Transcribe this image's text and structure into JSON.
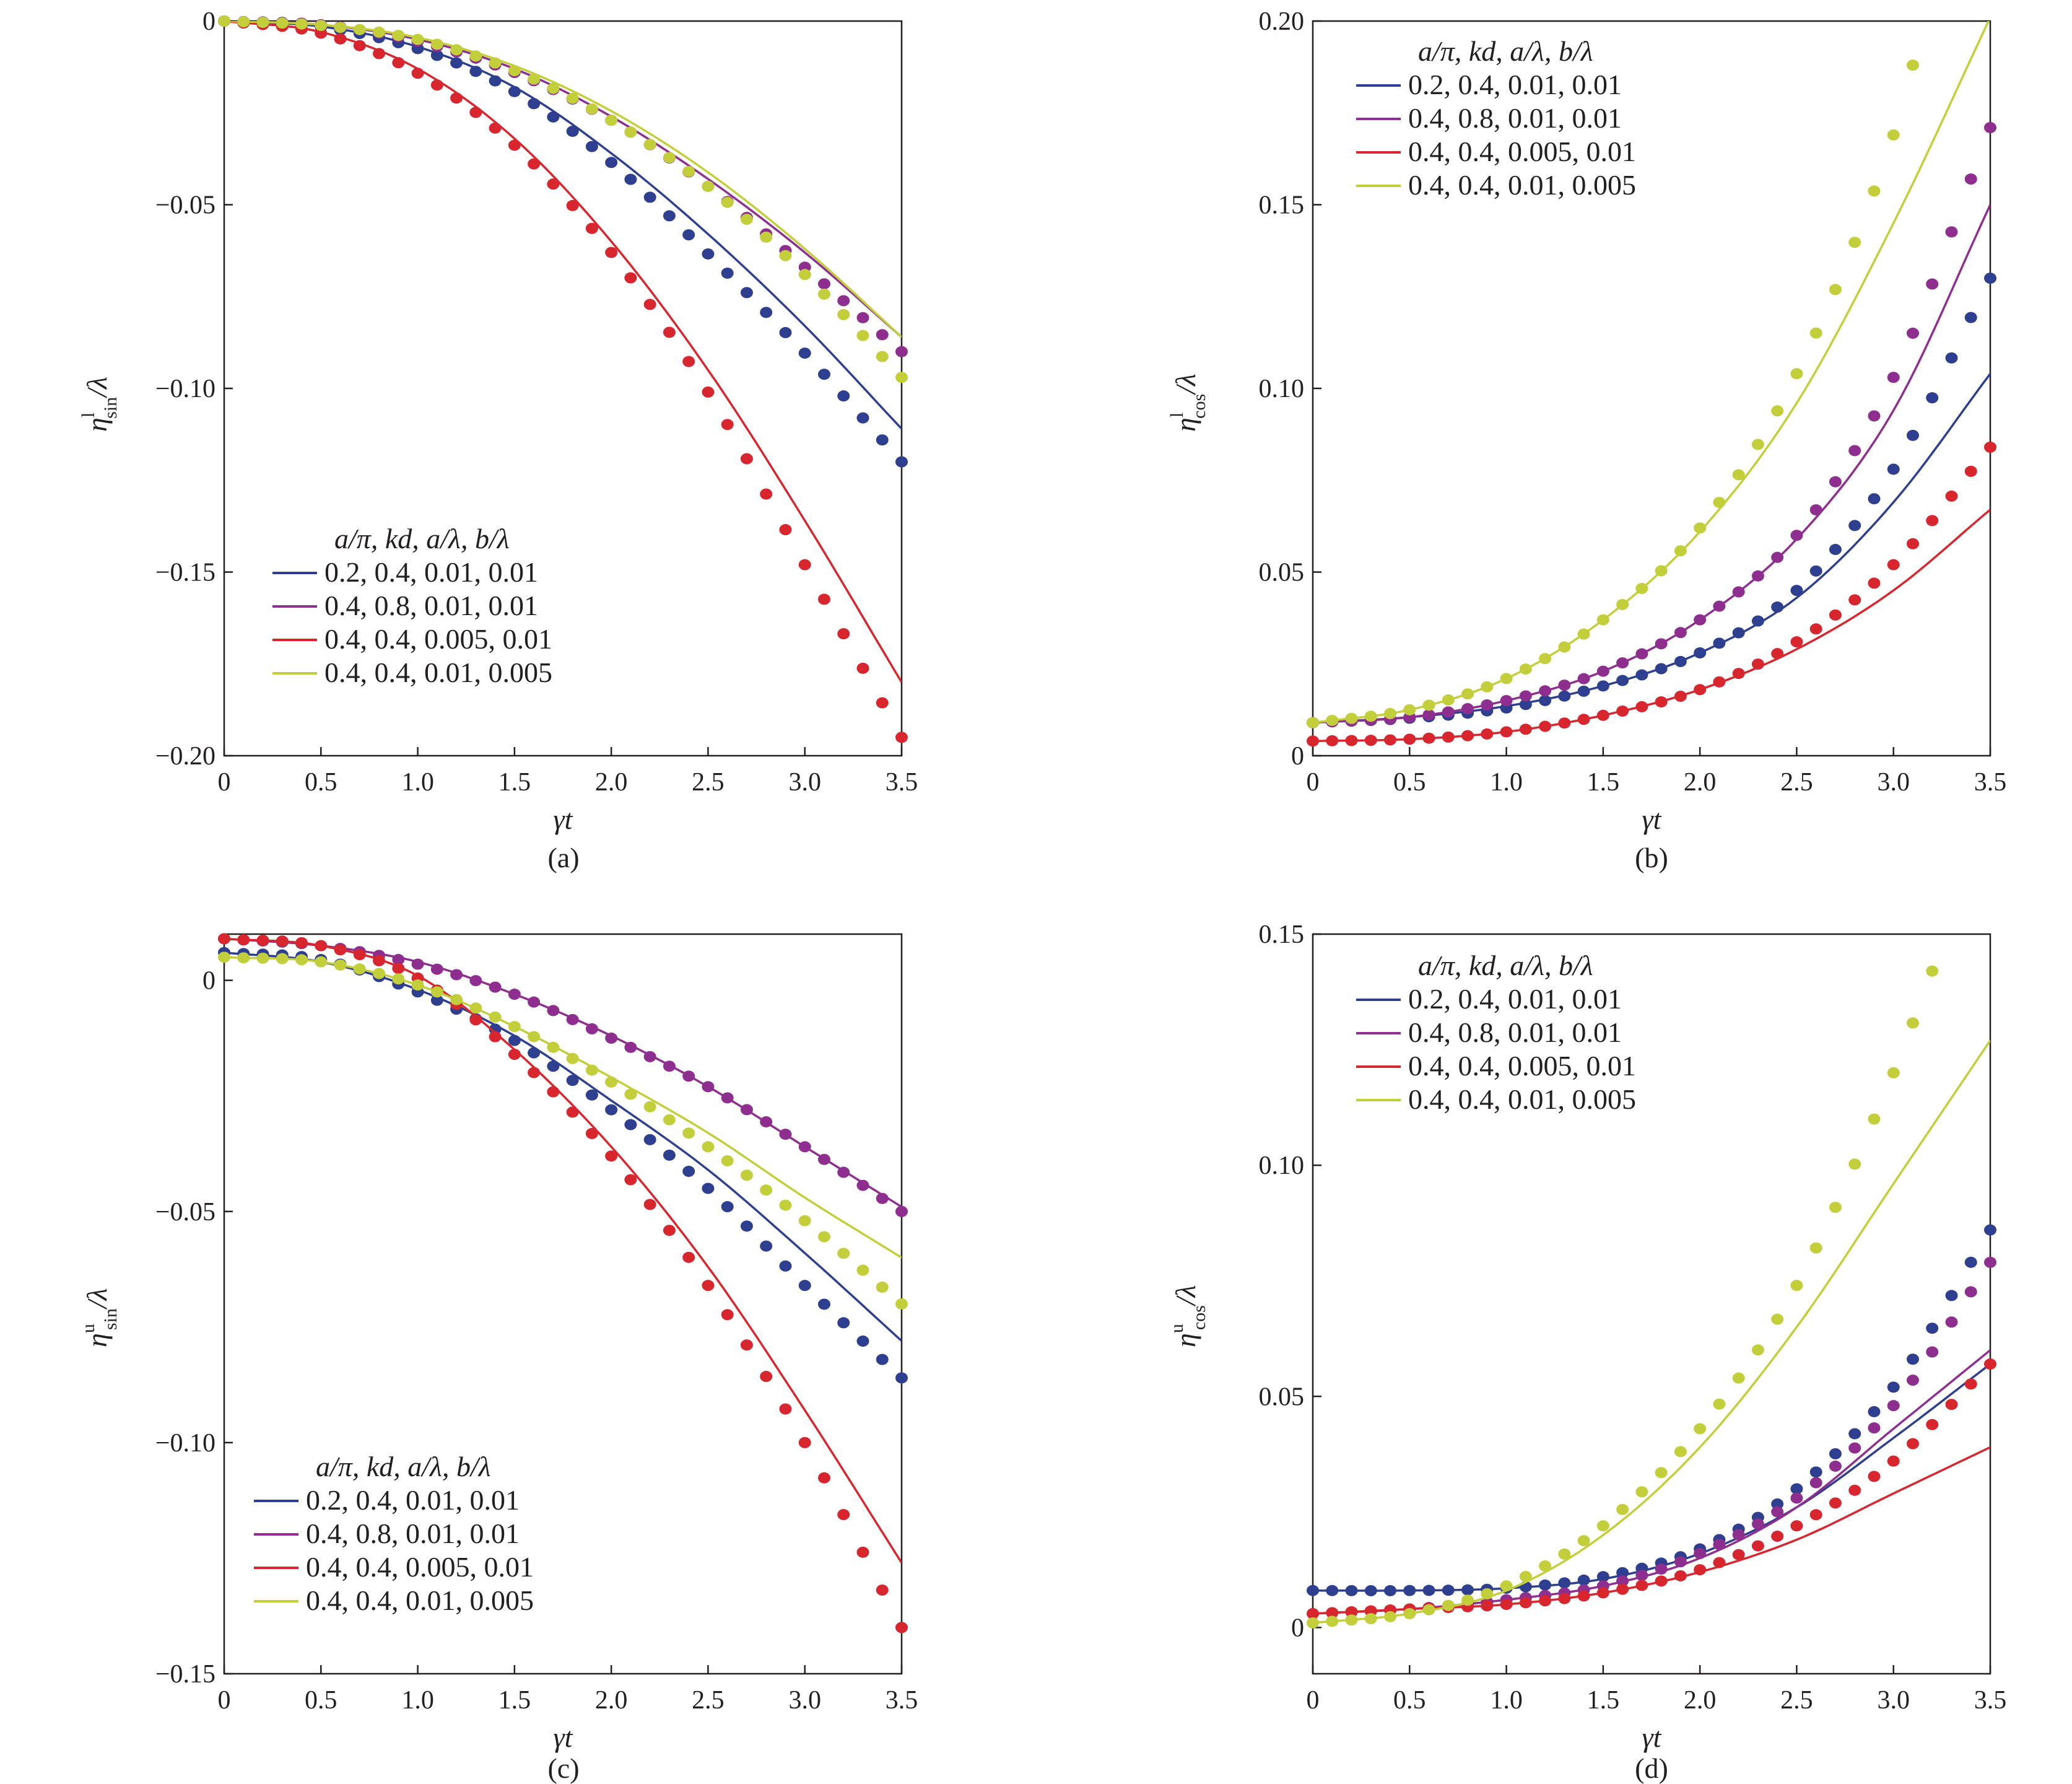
{
  "legend": {
    "title": "a/π,  kd,  a/λ,  b/λ",
    "entries": [
      {
        "label": "0.2, 0.4, 0.01, 0.01",
        "color": "#2e3f8f"
      },
      {
        "label": "0.4, 0.8, 0.01, 0.01",
        "color": "#8e2e8f"
      },
      {
        "label": "0.4, 0.4, 0.005, 0.01",
        "color": "#d7262e"
      },
      {
        "label": "0.4, 0.4, 0.01, 0.005",
        "color": "#c3cf3a"
      }
    ]
  },
  "chart_data": [
    {
      "type": "line",
      "panel_label": "(a)",
      "xlabel": "γt",
      "ylabel": {
        "main": "η",
        "sup": "l",
        "sub": "sin",
        "tail": "/λ"
      },
      "xlim": [
        0,
        3.5
      ],
      "ylim": [
        -0.2,
        0
      ],
      "xticks": [
        "0",
        "0.5",
        "1.0",
        "1.5",
        "2.0",
        "2.5",
        "3.0",
        "3.5"
      ],
      "yticks": [
        {
          "v": 0,
          "t": "0"
        },
        {
          "v": -0.05,
          "t": "−0.05"
        },
        {
          "v": -0.1,
          "t": "−0.10"
        },
        {
          "v": -0.15,
          "t": "−0.15"
        },
        {
          "v": -0.2,
          "t": "−0.20"
        }
      ],
      "legend_position": "bottom-left",
      "series": [
        {
          "lines": {
            "x": [
              0,
              0.5,
              1.0,
              1.5,
              2.0,
              2.5,
              3.0,
              3.5
            ],
            "y": [
              0,
              -0.0015,
              -0.007,
              -0.018,
              -0.036,
              -0.058,
              -0.083,
              -0.111
            ]
          },
          "markers": {
            "x": [
              0,
              0.5,
              1.0,
              1.5,
              2.0,
              2.5,
              3.0,
              3.5
            ],
            "y": [
              0,
              -0.0016,
              -0.0075,
              -0.0192,
              -0.0385,
              -0.0634,
              -0.0904,
              -0.12
            ]
          }
        },
        {
          "lines": {
            "x": [
              0,
              0.5,
              1.0,
              1.5,
              2.0,
              2.5,
              3.0,
              3.5
            ],
            "y": [
              0,
              -0.001,
              -0.005,
              -0.013,
              -0.026,
              -0.043,
              -0.063,
              -0.086
            ]
          },
          "markers": {
            "x": [
              0,
              0.5,
              1.0,
              1.5,
              2.0,
              2.5,
              3.0,
              3.5
            ],
            "y": [
              0,
              -0.001,
              -0.0055,
              -0.014,
              -0.027,
              -0.045,
              -0.067,
              -0.09
            ]
          }
        },
        {
          "lines": {
            "x": [
              0,
              0.5,
              1.0,
              1.5,
              2.0,
              2.5,
              3.0,
              3.5
            ],
            "y": [
              0,
              -0.003,
              -0.013,
              -0.032,
              -0.06,
              -0.095,
              -0.136,
              -0.18
            ]
          },
          "markers": {
            "x": [
              0,
              0.5,
              1.0,
              1.5,
              2.0,
              2.5,
              3.0,
              3.5
            ],
            "y": [
              0,
              -0.0033,
              -0.0142,
              -0.0338,
              -0.063,
              -0.101,
              -0.148,
              -0.195
            ]
          }
        },
        {
          "lines": {
            "x": [
              0,
              0.5,
              1.0,
              1.5,
              2.0,
              2.5,
              3.0,
              3.5
            ],
            "y": [
              0,
              -0.001,
              -0.0045,
              -0.0122,
              -0.0245,
              -0.0412,
              -0.062,
              -0.086
            ]
          },
          "markers": {
            "x": [
              0,
              0.5,
              1.0,
              1.5,
              2.0,
              2.5,
              3.0,
              3.5
            ],
            "y": [
              0,
              -0.0012,
              -0.005,
              -0.0135,
              -0.027,
              -0.045,
              -0.069,
              -0.097
            ]
          }
        }
      ]
    },
    {
      "type": "line",
      "panel_label": "(b)",
      "xlabel": "γt",
      "ylabel": {
        "main": "η",
        "sup": "l",
        "sub": "cos",
        "tail": "/λ"
      },
      "xlim": [
        0,
        3.5
      ],
      "ylim": [
        0,
        0.2
      ],
      "xticks": [
        "0",
        "0.5",
        "1.0",
        "1.5",
        "2.0",
        "2.5",
        "3.0",
        "3.5"
      ],
      "yticks": [
        {
          "v": 0,
          "t": "0"
        },
        {
          "v": 0.05,
          "t": "0.05"
        },
        {
          "v": 0.1,
          "t": "0.10"
        },
        {
          "v": 0.15,
          "t": "0.15"
        },
        {
          "v": 0.2,
          "t": "0.20"
        }
      ],
      "legend_position": "top-left",
      "series": [
        {
          "lines": {
            "x": [
              0,
              0.5,
              1.0,
              1.5,
              2.0,
              2.5,
              3.0,
              3.5
            ],
            "y": [
              0.009,
              0.0105,
              0.0135,
              0.019,
              0.028,
              0.043,
              0.069,
              0.104
            ]
          },
          "markers": {
            "x": [
              0,
              0.5,
              1.0,
              1.5,
              2.0,
              2.5,
              3.0,
              3.5
            ],
            "y": [
              0.009,
              0.0102,
              0.013,
              0.019,
              0.028,
              0.045,
              0.078,
              0.13
            ]
          }
        },
        {
          "lines": {
            "x": [
              0,
              0.5,
              1.0,
              1.5,
              2.0,
              2.5,
              3.0,
              3.5
            ],
            "y": [
              0.009,
              0.0105,
              0.015,
              0.023,
              0.037,
              0.059,
              0.094,
              0.15
            ]
          },
          "markers": {
            "x": [
              0,
              0.5,
              1.0,
              1.5,
              2.0,
              2.5,
              3.0,
              3.5
            ],
            "y": [
              0.009,
              0.0105,
              0.015,
              0.023,
              0.037,
              0.06,
              0.103,
              0.171
            ]
          }
        },
        {
          "lines": {
            "x": [
              0,
              0.5,
              1.0,
              1.5,
              2.0,
              2.5,
              3.0,
              3.5
            ],
            "y": [
              0.004,
              0.0045,
              0.0065,
              0.011,
              0.018,
              0.029,
              0.045,
              0.067
            ]
          },
          "markers": {
            "x": [
              0,
              0.5,
              1.0,
              1.5,
              2.0,
              2.5,
              3.0,
              3.5
            ],
            "y": [
              0.004,
              0.0045,
              0.0065,
              0.011,
              0.018,
              0.031,
              0.052,
              0.084
            ]
          }
        },
        {
          "lines": {
            "x": [
              0,
              0.5,
              1.0,
              1.5,
              2.0,
              2.5,
              3.0,
              3.5
            ],
            "y": [
              0.009,
              0.0125,
              0.021,
              0.037,
              0.061,
              0.096,
              0.145,
              0.201
            ]
          },
          "markers": {
            "x": [
              0,
              0.5,
              1.0,
              1.5,
              2.0,
              2.5,
              3.0,
              3.1
            ],
            "y": [
              0.009,
              0.0125,
              0.021,
              0.037,
              0.062,
              0.104,
              0.169,
              0.188
            ]
          }
        }
      ]
    },
    {
      "type": "line",
      "panel_label": "(c)",
      "xlabel": "γt",
      "ylabel": {
        "main": "η",
        "sup": "u",
        "sub": "sin",
        "tail": "/λ"
      },
      "xlim": [
        0,
        3.5
      ],
      "ylim": [
        -0.15,
        0.01
      ],
      "xticks": [
        "0",
        "0.5",
        "1.0",
        "1.5",
        "2.0",
        "2.5",
        "3.0",
        "3.5"
      ],
      "yticks": [
        {
          "v": 0,
          "t": "0"
        },
        {
          "v": -0.05,
          "t": "−0.05"
        },
        {
          "v": -0.1,
          "t": "−0.10"
        },
        {
          "v": -0.15,
          "t": "−0.15"
        }
      ],
      "legend_position": "bottom-left",
      "series": [
        {
          "lines": {
            "x": [
              0,
              0.5,
              1.0,
              1.5,
              2.0,
              2.5,
              3.0,
              3.5
            ],
            "y": [
              0.006,
              0.004,
              -0.002,
              -0.012,
              -0.026,
              -0.041,
              -0.059,
              -0.078
            ]
          },
          "markers": {
            "x": [
              0,
              0.5,
              1.0,
              1.5,
              2.0,
              2.5,
              3.0,
              3.5
            ],
            "y": [
              0.006,
              0.0045,
              -0.0025,
              -0.013,
              -0.028,
              -0.045,
              -0.066,
              -0.086
            ]
          }
        },
        {
          "lines": {
            "x": [
              0,
              0.5,
              1.0,
              1.5,
              2.0,
              2.5,
              3.0,
              3.5
            ],
            "y": [
              0.009,
              0.0075,
              0.004,
              -0.003,
              -0.012,
              -0.023,
              -0.036,
              -0.049
            ]
          },
          "markers": {
            "x": [
              0,
              0.5,
              1.0,
              1.5,
              2.0,
              2.5,
              3.0,
              3.5
            ],
            "y": [
              0.009,
              0.0075,
              0.0035,
              -0.003,
              -0.0125,
              -0.023,
              -0.036,
              -0.05
            ]
          }
        },
        {
          "lines": {
            "x": [
              0,
              0.5,
              1.0,
              1.5,
              2.0,
              2.5,
              3.0,
              3.5
            ],
            "y": [
              0.009,
              0.0075,
              0.001,
              -0.015,
              -0.036,
              -0.062,
              -0.093,
              -0.126
            ]
          },
          "markers": {
            "x": [
              0,
              0.5,
              1.0,
              1.5,
              2.0,
              2.5,
              3.0,
              3.5
            ],
            "y": [
              0.009,
              0.0075,
              0.0005,
              -0.016,
              -0.038,
              -0.066,
              -0.1,
              -0.14
            ]
          }
        },
        {
          "lines": {
            "x": [
              0,
              0.5,
              1.0,
              1.5,
              2.0,
              2.5,
              3.0,
              3.5
            ],
            "y": [
              0.005,
              0.004,
              -0.001,
              -0.01,
              -0.021,
              -0.033,
              -0.047,
              -0.06
            ]
          },
          "markers": {
            "x": [
              0,
              0.5,
              1.0,
              1.5,
              2.0,
              2.5,
              3.0,
              3.5
            ],
            "y": [
              0.005,
              0.004,
              -0.001,
              -0.01,
              -0.022,
              -0.036,
              -0.052,
              -0.07
            ]
          }
        }
      ]
    },
    {
      "type": "line",
      "panel_label": "(d)",
      "xlabel": "γt",
      "ylabel": {
        "main": "η",
        "sup": "u",
        "sub": "cos",
        "tail": "/λ"
      },
      "xlim": [
        0,
        3.5
      ],
      "ylim": [
        -0.01,
        0.15
      ],
      "xticks": [
        "0",
        "0.5",
        "1.0",
        "1.5",
        "2.0",
        "2.5",
        "3.0",
        "3.5"
      ],
      "yticks": [
        {
          "v": 0,
          "t": "0"
        },
        {
          "v": 0.05,
          "t": "0.05"
        },
        {
          "v": 0.1,
          "t": "0.10"
        },
        {
          "v": 0.15,
          "t": "0.15"
        }
      ],
      "legend_position": "top-left",
      "series": [
        {
          "lines": {
            "x": [
              0,
              0.5,
              1.0,
              1.5,
              2.0,
              2.5,
              3.0,
              3.5
            ],
            "y": [
              0.008,
              0.008,
              0.0085,
              0.0105,
              0.016,
              0.026,
              0.041,
              0.057
            ]
          },
          "markers": {
            "x": [
              0,
              0.5,
              1.0,
              1.5,
              2.0,
              2.5,
              3.0,
              3.5
            ],
            "y": [
              0.008,
              0.008,
              0.0085,
              0.011,
              0.017,
              0.03,
              0.052,
              0.086
            ]
          }
        },
        {
          "lines": {
            "x": [
              0,
              0.5,
              1.0,
              1.5,
              2.0,
              2.5,
              3.0,
              3.5
            ],
            "y": [
              0.003,
              0.004,
              0.006,
              0.009,
              0.015,
              0.026,
              0.043,
              0.06
            ]
          },
          "markers": {
            "x": [
              0,
              0.5,
              1.0,
              1.5,
              2.0,
              2.5,
              3.0,
              3.5
            ],
            "y": [
              0.003,
              0.004,
              0.006,
              0.009,
              0.016,
              0.028,
              0.048,
              0.079
            ]
          }
        },
        {
          "lines": {
            "x": [
              0,
              0.5,
              1.0,
              1.5,
              2.0,
              2.5,
              3.0,
              3.5
            ],
            "y": [
              0.003,
              0.004,
              0.005,
              0.0075,
              0.012,
              0.019,
              0.029,
              0.039
            ]
          },
          "markers": {
            "x": [
              0,
              0.5,
              1.0,
              1.5,
              2.0,
              2.5,
              3.0,
              3.5
            ],
            "y": [
              0.003,
              0.004,
              0.005,
              0.0075,
              0.0125,
              0.022,
              0.036,
              0.057
            ]
          }
        },
        {
          "lines": {
            "x": [
              0,
              0.5,
              1.0,
              1.5,
              2.0,
              2.5,
              3.0,
              3.5
            ],
            "y": [
              0.001,
              0.003,
              0.008,
              0.02,
              0.039,
              0.065,
              0.096,
              0.127
            ]
          },
          "markers": {
            "x": [
              0,
              0.5,
              1.0,
              1.5,
              2.0,
              2.5,
              3.0,
              3.2
            ],
            "y": [
              0.001,
              0.003,
              0.009,
              0.022,
              0.043,
              0.074,
              0.12,
              0.142
            ]
          }
        }
      ]
    }
  ]
}
